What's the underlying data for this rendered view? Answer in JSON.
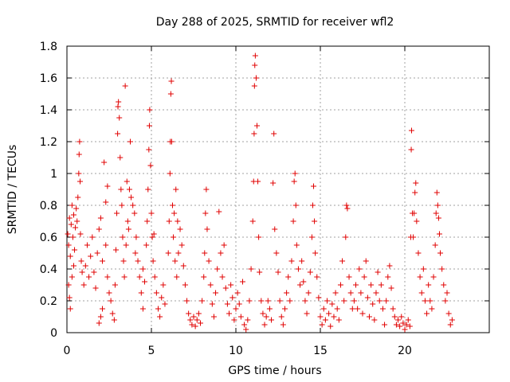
{
  "chart_data": {
    "type": "scatter",
    "title": "Day 288 of 2025, SRMTID for receiver wfl2",
    "xlabel": "GPS time / hours",
    "ylabel": "SRMTID / TECUs",
    "xlim": [
      0,
      25
    ],
    "ylim": [
      0,
      1.8
    ],
    "grid": true,
    "marker": "plus",
    "x_ticks": [
      0,
      5,
      10,
      15,
      20
    ],
    "x_tick_labels": [
      "0",
      "5",
      "10",
      "15",
      "20"
    ],
    "y_ticks": [
      0,
      0.2,
      0.4,
      0.6,
      0.8,
      1.0,
      1.2,
      1.4,
      1.6,
      1.8
    ],
    "y_tick_labels": [
      "0",
      "0.2",
      "0.4",
      "0.6",
      "0.8",
      "1",
      "1.2",
      "1.4",
      "1.6",
      "1.8"
    ],
    "series": [
      {
        "name": "SRMTID",
        "color": "#e00000",
        "points": [
          [
            0.05,
            0.62
          ],
          [
            0.1,
            0.55
          ],
          [
            0.15,
            0.72
          ],
          [
            0.2,
            0.48
          ],
          [
            0.25,
            0.68
          ],
          [
            0.3,
            0.8
          ],
          [
            0.35,
            0.6
          ],
          [
            0.4,
            0.74
          ],
          [
            0.45,
            0.52
          ],
          [
            0.5,
            0.66
          ],
          [
            0.55,
            0.78
          ],
          [
            0.6,
            0.7
          ],
          [
            0.65,
            0.85
          ],
          [
            0.7,
            1.0
          ],
          [
            0.72,
            1.12
          ],
          [
            0.75,
            1.2
          ],
          [
            0.78,
            0.95
          ],
          [
            0.8,
            0.62
          ],
          [
            0.85,
            0.45
          ],
          [
            0.9,
            0.38
          ],
          [
            0.1,
            0.3
          ],
          [
            0.15,
            0.22
          ],
          [
            0.2,
            0.15
          ],
          [
            0.3,
            0.35
          ],
          [
            0.4,
            0.42
          ],
          [
            1.0,
            0.3
          ],
          [
            1.1,
            0.42
          ],
          [
            1.2,
            0.55
          ],
          [
            1.3,
            0.35
          ],
          [
            1.4,
            0.48
          ],
          [
            1.5,
            0.6
          ],
          [
            1.6,
            0.38
          ],
          [
            1.7,
            0.28
          ],
          [
            1.8,
            0.5
          ],
          [
            1.9,
            0.65
          ],
          [
            2.0,
            0.72
          ],
          [
            2.1,
            0.45
          ],
          [
            2.2,
            1.07
          ],
          [
            2.3,
            0.55
          ],
          [
            2.4,
            0.35
          ],
          [
            2.5,
            0.25
          ],
          [
            2.0,
            0.1
          ],
          [
            1.9,
            0.06
          ],
          [
            2.1,
            0.15
          ],
          [
            2.3,
            0.82
          ],
          [
            2.4,
            0.92
          ],
          [
            2.6,
            0.2
          ],
          [
            2.7,
            0.12
          ],
          [
            2.8,
            0.08
          ],
          [
            2.85,
            0.3
          ],
          [
            2.9,
            0.52
          ],
          [
            2.95,
            0.75
          ],
          [
            3.0,
            1.25
          ],
          [
            3.02,
            1.42
          ],
          [
            3.05,
            1.45
          ],
          [
            3.1,
            1.35
          ],
          [
            3.15,
            1.1
          ],
          [
            3.2,
            0.9
          ],
          [
            3.25,
            0.8
          ],
          [
            3.3,
            0.6
          ],
          [
            3.35,
            0.45
          ],
          [
            3.4,
            0.35
          ],
          [
            3.5,
            0.55
          ],
          [
            3.6,
            0.7
          ],
          [
            3.7,
            0.9
          ],
          [
            3.8,
            0.85
          ],
          [
            3.9,
            0.8
          ],
          [
            4.0,
            0.75
          ],
          [
            4.1,
            0.6
          ],
          [
            4.2,
            0.45
          ],
          [
            4.3,
            0.35
          ],
          [
            4.4,
            0.25
          ],
          [
            4.5,
            0.15
          ],
          [
            3.75,
            1.2
          ],
          [
            3.45,
            1.55
          ],
          [
            3.55,
            0.95
          ],
          [
            3.65,
            0.65
          ],
          [
            4.05,
            0.5
          ],
          [
            4.7,
            0.55
          ],
          [
            4.75,
            0.7
          ],
          [
            4.8,
            0.9
          ],
          [
            4.85,
            1.15
          ],
          [
            4.88,
            1.3
          ],
          [
            4.9,
            1.4
          ],
          [
            4.95,
            1.05
          ],
          [
            5.0,
            0.75
          ],
          [
            5.05,
            0.6
          ],
          [
            5.1,
            0.45
          ],
          [
            5.2,
            0.35
          ],
          [
            5.3,
            0.25
          ],
          [
            5.4,
            0.15
          ],
          [
            5.5,
            0.1
          ],
          [
            5.6,
            0.22
          ],
          [
            5.7,
            0.3
          ],
          [
            5.8,
            0.18
          ],
          [
            4.6,
            0.32
          ],
          [
            4.5,
            0.4
          ],
          [
            5.15,
            0.62
          ],
          [
            6.0,
            0.5
          ],
          [
            6.05,
            0.7
          ],
          [
            6.1,
            1.0
          ],
          [
            6.12,
            1.2
          ],
          [
            6.15,
            1.5
          ],
          [
            6.18,
            1.58
          ],
          [
            6.2,
            1.2
          ],
          [
            6.25,
            0.8
          ],
          [
            6.3,
            0.6
          ],
          [
            6.4,
            0.45
          ],
          [
            6.5,
            0.35
          ],
          [
            6.6,
            0.5
          ],
          [
            6.7,
            0.65
          ],
          [
            6.8,
            0.55
          ],
          [
            6.9,
            0.42
          ],
          [
            7.0,
            0.3
          ],
          [
            7.1,
            0.2
          ],
          [
            7.2,
            0.12
          ],
          [
            6.35,
            0.75
          ],
          [
            6.45,
            0.9
          ],
          [
            6.55,
            0.7
          ],
          [
            7.3,
            0.08
          ],
          [
            7.4,
            0.05
          ],
          [
            7.5,
            0.1
          ],
          [
            7.6,
            0.04
          ],
          [
            7.7,
            0.08
          ],
          [
            7.8,
            0.12
          ],
          [
            7.9,
            0.06
          ],
          [
            8.0,
            0.2
          ],
          [
            8.1,
            0.35
          ],
          [
            8.15,
            0.5
          ],
          [
            8.2,
            0.75
          ],
          [
            8.25,
            0.9
          ],
          [
            8.3,
            0.65
          ],
          [
            8.4,
            0.45
          ],
          [
            8.5,
            0.3
          ],
          [
            8.6,
            0.18
          ],
          [
            8.7,
            0.1
          ],
          [
            8.8,
            0.25
          ],
          [
            8.9,
            0.4
          ],
          [
            9.0,
            0.76
          ],
          [
            9.1,
            0.5
          ],
          [
            9.2,
            0.35
          ],
          [
            9.3,
            0.55
          ],
          [
            9.4,
            0.28
          ],
          [
            9.5,
            0.18
          ],
          [
            9.6,
            0.12
          ],
          [
            9.7,
            0.3
          ],
          [
            9.8,
            0.22
          ],
          [
            9.9,
            0.08
          ],
          [
            10.0,
            0.15
          ],
          [
            10.1,
            0.25
          ],
          [
            10.2,
            0.18
          ],
          [
            10.3,
            0.1
          ],
          [
            10.4,
            0.32
          ],
          [
            10.5,
            0.05
          ],
          [
            10.6,
            0.02
          ],
          [
            10.7,
            0.08
          ],
          [
            10.8,
            0.2
          ],
          [
            10.9,
            0.4
          ],
          [
            11.0,
            0.7
          ],
          [
            11.05,
            0.95
          ],
          [
            11.08,
            1.25
          ],
          [
            11.1,
            1.55
          ],
          [
            11.12,
            1.68
          ],
          [
            11.15,
            1.74
          ],
          [
            11.2,
            1.6
          ],
          [
            11.25,
            1.3
          ],
          [
            11.3,
            0.95
          ],
          [
            11.35,
            0.6
          ],
          [
            11.4,
            0.38
          ],
          [
            11.5,
            0.2
          ],
          [
            11.6,
            0.12
          ],
          [
            11.7,
            0.05
          ],
          [
            11.8,
            0.1
          ],
          [
            11.9,
            0.2
          ],
          [
            12.0,
            0.15
          ],
          [
            12.1,
            0.08
          ],
          [
            12.2,
            0.94
          ],
          [
            12.25,
            1.25
          ],
          [
            12.3,
            0.65
          ],
          [
            12.4,
            0.5
          ],
          [
            12.5,
            0.38
          ],
          [
            12.6,
            0.2
          ],
          [
            12.7,
            0.1
          ],
          [
            12.8,
            0.05
          ],
          [
            12.9,
            0.15
          ],
          [
            13.0,
            0.25
          ],
          [
            13.1,
            0.35
          ],
          [
            13.2,
            0.2
          ],
          [
            13.3,
            0.45
          ],
          [
            13.4,
            0.7
          ],
          [
            13.45,
            0.95
          ],
          [
            13.5,
            1.0
          ],
          [
            13.55,
            0.8
          ],
          [
            13.6,
            0.55
          ],
          [
            13.7,
            0.4
          ],
          [
            13.8,
            0.3
          ],
          [
            13.9,
            0.45
          ],
          [
            14.0,
            0.32
          ],
          [
            14.1,
            0.2
          ],
          [
            14.2,
            0.12
          ],
          [
            14.3,
            0.25
          ],
          [
            14.4,
            0.38
          ],
          [
            14.5,
            0.6
          ],
          [
            14.55,
            0.8
          ],
          [
            14.6,
            0.92
          ],
          [
            14.65,
            0.7
          ],
          [
            14.7,
            0.5
          ],
          [
            14.8,
            0.35
          ],
          [
            14.9,
            0.22
          ],
          [
            15.0,
            0.1
          ],
          [
            15.1,
            0.05
          ],
          [
            15.2,
            0.15
          ],
          [
            15.3,
            0.08
          ],
          [
            15.4,
            0.2
          ],
          [
            15.5,
            0.12
          ],
          [
            15.6,
            0.04
          ],
          [
            15.7,
            0.18
          ],
          [
            15.8,
            0.1
          ],
          [
            15.9,
            0.25
          ],
          [
            16.0,
            0.15
          ],
          [
            16.1,
            0.08
          ],
          [
            16.2,
            0.3
          ],
          [
            16.3,
            0.45
          ],
          [
            16.4,
            0.2
          ],
          [
            16.5,
            0.6
          ],
          [
            16.55,
            0.8
          ],
          [
            16.6,
            0.78
          ],
          [
            16.7,
            0.35
          ],
          [
            16.8,
            0.25
          ],
          [
            16.9,
            0.15
          ],
          [
            17.0,
            0.2
          ],
          [
            17.1,
            0.3
          ],
          [
            17.2,
            0.15
          ],
          [
            17.3,
            0.4
          ],
          [
            17.4,
            0.25
          ],
          [
            17.5,
            0.12
          ],
          [
            17.6,
            0.35
          ],
          [
            17.7,
            0.45
          ],
          [
            17.8,
            0.22
          ],
          [
            17.9,
            0.1
          ],
          [
            18.0,
            0.3
          ],
          [
            18.1,
            0.18
          ],
          [
            18.2,
            0.08
          ],
          [
            18.3,
            0.25
          ],
          [
            18.4,
            0.38
          ],
          [
            18.5,
            0.2
          ],
          [
            18.6,
            0.3
          ],
          [
            18.7,
            0.15
          ],
          [
            18.8,
            0.05
          ],
          [
            18.9,
            0.2
          ],
          [
            19.0,
            0.35
          ],
          [
            19.1,
            0.42
          ],
          [
            19.2,
            0.28
          ],
          [
            19.3,
            0.15
          ],
          [
            19.4,
            0.1
          ],
          [
            19.5,
            0.05
          ],
          [
            19.6,
            0.08
          ],
          [
            19.7,
            0.04
          ],
          [
            19.8,
            0.1
          ],
          [
            19.9,
            0.06
          ],
          [
            20.0,
            0.02
          ],
          [
            20.1,
            0.05
          ],
          [
            20.2,
            0.08
          ],
          [
            20.3,
            0.04
          ],
          [
            20.35,
            0.6
          ],
          [
            20.38,
            1.15
          ],
          [
            20.4,
            1.27
          ],
          [
            20.45,
            0.75
          ],
          [
            20.5,
            0.6
          ],
          [
            20.55,
            0.75
          ],
          [
            20.6,
            0.88
          ],
          [
            20.65,
            0.94
          ],
          [
            20.7,
            0.7
          ],
          [
            20.8,
            0.5
          ],
          [
            20.9,
            0.35
          ],
          [
            21.0,
            0.25
          ],
          [
            21.1,
            0.4
          ],
          [
            21.2,
            0.2
          ],
          [
            21.3,
            0.12
          ],
          [
            21.4,
            0.3
          ],
          [
            21.5,
            0.2
          ],
          [
            21.6,
            0.15
          ],
          [
            21.7,
            0.35
          ],
          [
            21.8,
            0.55
          ],
          [
            21.85,
            0.75
          ],
          [
            21.9,
            0.88
          ],
          [
            21.95,
            0.8
          ],
          [
            22.0,
            0.72
          ],
          [
            22.05,
            0.62
          ],
          [
            22.1,
            0.5
          ],
          [
            22.2,
            0.4
          ],
          [
            22.3,
            0.3
          ],
          [
            22.4,
            0.2
          ],
          [
            22.5,
            0.25
          ],
          [
            22.6,
            0.12
          ],
          [
            22.7,
            0.05
          ],
          [
            22.8,
            0.08
          ]
        ]
      }
    ]
  }
}
